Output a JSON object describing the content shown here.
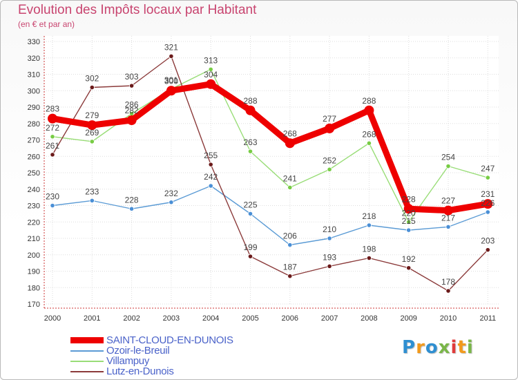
{
  "title": "Evolution des Impôts locaux par Habitant",
  "subtitle": "(en € et par an)",
  "brand": {
    "text": "Proxiti",
    "letters": [
      "P",
      "r",
      "o",
      "x",
      "i",
      "t",
      "i"
    ],
    "colors": [
      "#2f8fd1",
      "#f29a1d",
      "#2f8fd1",
      "#7ab648",
      "#e03b3b",
      "#f29a1d",
      "#7ab648"
    ]
  },
  "chart_data": {
    "type": "line",
    "title": "Evolution des Impôts locaux par Habitant",
    "subtitle": "(en € et par an)",
    "xlabel": "",
    "ylabel": "",
    "ylim": [
      170,
      330
    ],
    "ytick_step": 10,
    "grid": true,
    "categories": [
      "2000",
      "2001",
      "2002",
      "2003",
      "2004",
      "2005",
      "2006",
      "2007",
      "2008",
      "2009",
      "2010",
      "2011"
    ],
    "series": [
      {
        "name": "Ozoir-le-Breuil",
        "color": "#5b9bd5",
        "point_color": "#4a8fd6",
        "bold": false,
        "values": [
          230,
          233,
          228,
          232,
          242,
          225,
          206,
          210,
          218,
          215,
          217,
          226
        ],
        "labels": [
          "230",
          "233",
          "228",
          "232",
          "242",
          "225",
          "206",
          "210",
          "218",
          "215",
          "217",
          "226"
        ]
      },
      {
        "name": "Villampuy",
        "color": "#99dd77",
        "point_color": "#77cc44",
        "bold": false,
        "values": [
          272,
          269,
          286,
          301,
          313,
          263,
          241,
          252,
          268,
          220,
          254,
          247
        ],
        "labels": [
          "272",
          "269",
          "286",
          "301",
          "313",
          "263",
          "241",
          "252",
          "268",
          "220",
          "254",
          "247"
        ]
      },
      {
        "name": "Lutz-en-Dunois",
        "color": "#8b3a3a",
        "point_color": "#6b1a1a",
        "bold": false,
        "values": [
          261,
          302,
          303,
          321,
          255,
          199,
          187,
          193,
          198,
          192,
          178,
          203
        ],
        "labels": [
          "261",
          "302",
          "303",
          "321",
          "255",
          "199",
          "187",
          "193",
          "198",
          "192",
          "178",
          "203"
        ]
      },
      {
        "name": "SAINT-CLOUD-EN-DUNOIS",
        "color": "#ee0000",
        "point_color": "#ee0000",
        "bold": true,
        "values": [
          283,
          279,
          282,
          300,
          304,
          288,
          268,
          277,
          288,
          228,
          227,
          231
        ],
        "labels": [
          "283",
          "279",
          "282",
          "300",
          "304",
          "288",
          "268",
          "277",
          "288",
          "228",
          "227",
          "231"
        ]
      }
    ],
    "legend": {
      "placement": "bottom-left",
      "order": [
        "SAINT-CLOUD-EN-DUNOIS",
        "Ozoir-le-Breuil",
        "Villampuy",
        "Lutz-en-Dunois"
      ]
    }
  }
}
